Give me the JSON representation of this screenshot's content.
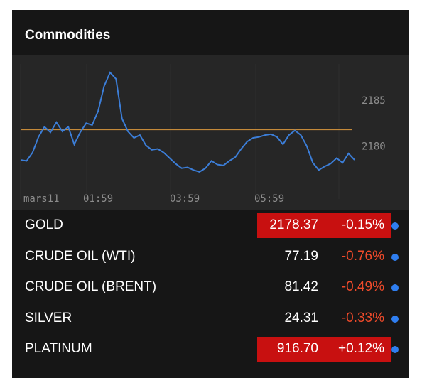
{
  "widget": {
    "title": "Commodities"
  },
  "chart": {
    "x_labels": [
      "mars11",
      "01:59",
      "03:59",
      "05:59"
    ],
    "y_labels": [
      "2185",
      "2180"
    ],
    "reference_line": 2181.8,
    "series_color": "#3c7ed8",
    "reference_color": "#c58a3a"
  },
  "chart_data": {
    "type": "line",
    "y_ticks": [
      2180,
      2185
    ],
    "x_ticks": [
      "mars11",
      "01:59",
      "03:59",
      "05:59"
    ],
    "reference": 2181.8,
    "ylim": [
      2176.5,
      2188
    ],
    "series": [
      {
        "values": [
          2178.5,
          2178.4,
          2179.3,
          2181.0,
          2182.1,
          2181.5,
          2182.6,
          2181.6,
          2182.1,
          2180.2,
          2181.5,
          2182.5,
          2182.3,
          2183.8,
          2186.5,
          2188.0,
          2187.3,
          2183.0,
          2181.6,
          2180.9,
          2181.2,
          2180.1,
          2179.6,
          2179.7,
          2179.3,
          2178.7,
          2178.1,
          2177.6,
          2177.7,
          2177.4,
          2177.2,
          2177.6,
          2178.4,
          2178.0,
          2177.9,
          2178.4,
          2178.8,
          2179.7,
          2180.5,
          2180.9,
          2181.0,
          2181.2,
          2181.3,
          2181.0,
          2180.2,
          2181.2,
          2181.7,
          2181.2,
          2180.0,
          2178.2,
          2177.4,
          2177.8,
          2178.1,
          2178.7,
          2178.2,
          2179.2,
          2178.5
        ]
      }
    ]
  },
  "rows": [
    {
      "name": "GOLD",
      "price": "2178.37",
      "change": "-0.15%",
      "highlight": true
    },
    {
      "name": "CRUDE OIL (WTI)",
      "price": "77.19",
      "change": "-0.76%",
      "highlight": false
    },
    {
      "name": "CRUDE OIL (BRENT)",
      "price": "81.42",
      "change": "-0.49%",
      "highlight": false
    },
    {
      "name": "SILVER",
      "price": "24.31",
      "change": "-0.33%",
      "highlight": false
    },
    {
      "name": "PLATINUM",
      "price": "916.70",
      "change": "+0.12%",
      "highlight": true
    }
  ]
}
